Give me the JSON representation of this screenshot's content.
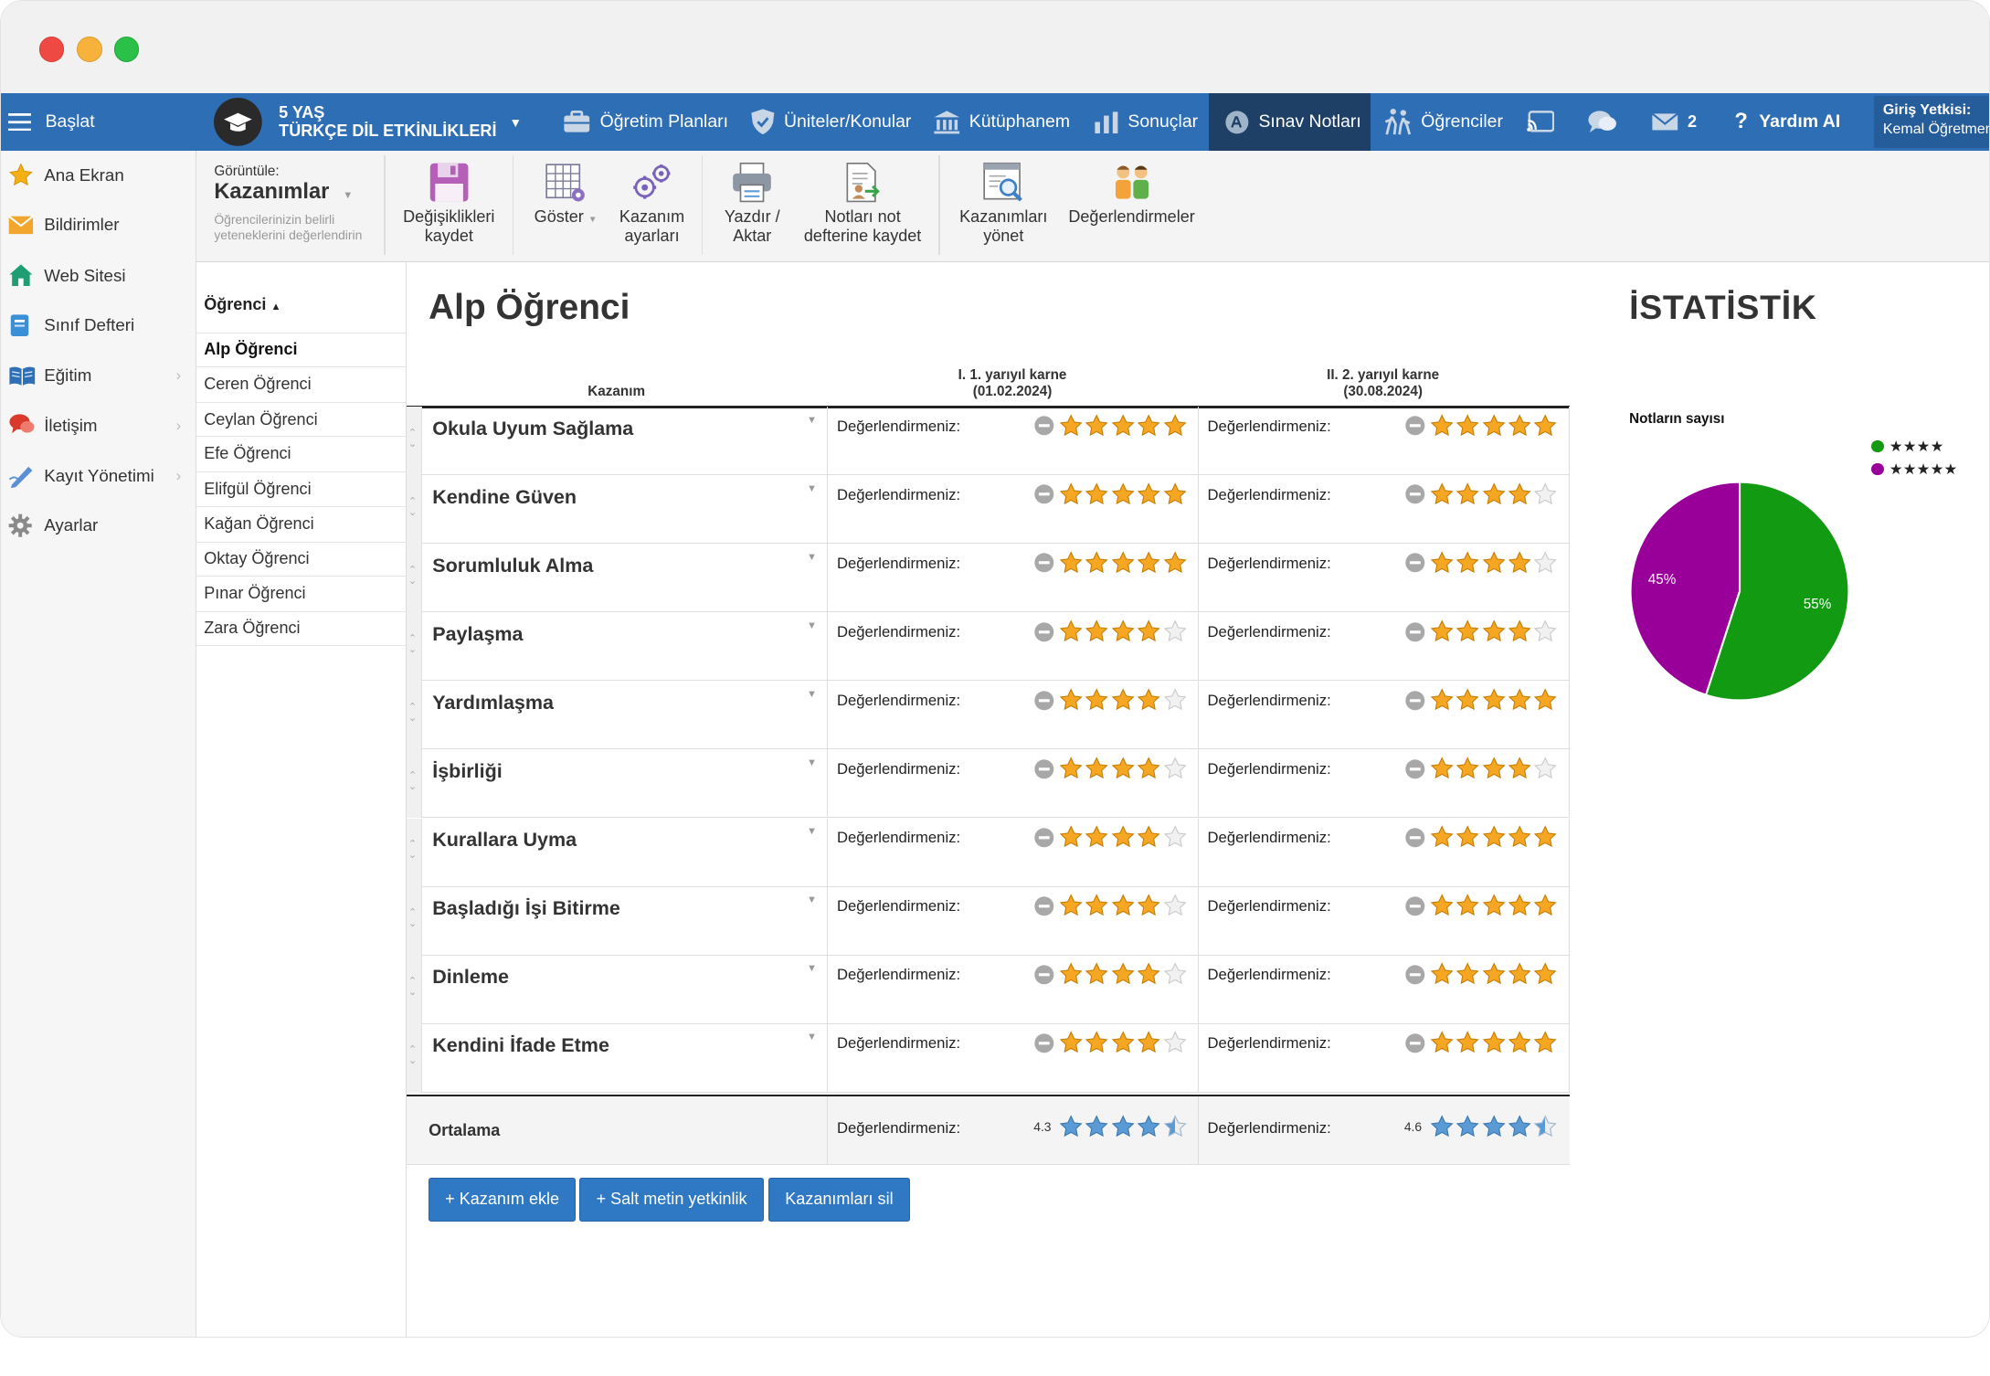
{
  "nav": {
    "start": "Başlat",
    "course_line1": "5 YAŞ",
    "course_line2": "TÜRKÇE DİL ETKİNLİKLERİ",
    "items": [
      "Öğretim Planları",
      "Üniteler/Konular",
      "Kütüphanem",
      "Sonuçlar",
      "Sınav Notları",
      "Öğrenciler"
    ],
    "mail_count": "2",
    "help": "Yardım AI",
    "auth_label": "Giriş Yetkisi:",
    "auth_user": "Kemal Öğretmen"
  },
  "sidebar": {
    "items": [
      {
        "label": "Ana Ekran",
        "icon": "star-icon"
      },
      {
        "label": "Bildirimler",
        "icon": "envelope-icon"
      },
      {
        "label": "Web Sitesi",
        "icon": "house-icon"
      },
      {
        "label": "Sınıf Defteri",
        "icon": "notebook-icon"
      },
      {
        "label": "Eğitim",
        "icon": "book-icon"
      },
      {
        "label": "İletişim",
        "icon": "chat-icon"
      },
      {
        "label": "Kayıt Yönetimi",
        "icon": "pen-icon"
      },
      {
        "label": "Ayarlar",
        "icon": "gear-icon"
      }
    ]
  },
  "toolbar": {
    "view_caption": "Görüntüle:",
    "view_value": "Kazanımlar",
    "view_desc1": "Öğrencilerinizin belirli",
    "view_desc2": "yeteneklerini değerlendirin",
    "save_l1": "Değişiklikleri",
    "save_l2": "kaydet",
    "show": "Göster",
    "settings_l1": "Kazanım",
    "settings_l2": "ayarları",
    "print_l1": "Yazdır /",
    "print_l2": "Aktar",
    "notes_l1": "Notları not",
    "notes_l2": "defterine kaydet",
    "manage_l1": "Kazanımları",
    "manage_l2": "yönet",
    "evaluations": "Değerlendirmeler"
  },
  "students": {
    "header": "Öğrenci",
    "list": [
      "Alp Öğrenci",
      "Ceren Öğrenci",
      "Ceylan Öğrenci",
      "Efe Öğrenci",
      "Elifgül Öğrenci",
      "Kağan Öğrenci",
      "Oktay Öğrenci",
      "Pınar Öğrenci",
      "Zara Öğrenci"
    ],
    "selected": "Alp Öğrenci"
  },
  "main": {
    "title": "Alp Öğrenci",
    "col_outcome": "Kazanım",
    "col1_title": "I. 1. yarıyıl karne",
    "col1_date": "(01.02.2024)",
    "col2_title": "II. 2. yarıyıl karne",
    "col2_date": "(30.08.2024)",
    "eval_label": "Değerlendirmeniz:",
    "rows": [
      {
        "name": "Okula Uyum Sağlama",
        "t1": 5,
        "t2": 5
      },
      {
        "name": "Kendine Güven",
        "t1": 5,
        "t2": 4
      },
      {
        "name": "Sorumluluk Alma",
        "t1": 5,
        "t2": 4
      },
      {
        "name": "Paylaşma",
        "t1": 4,
        "t2": 4
      },
      {
        "name": "Yardımlaşma",
        "t1": 4,
        "t2": 5
      },
      {
        "name": "İşbirliği",
        "t1": 4,
        "t2": 4
      },
      {
        "name": "Kurallara Uyma",
        "t1": 4,
        "t2": 5
      },
      {
        "name": "Başladığı İşi Bitirme",
        "t1": 4,
        "t2": 5
      },
      {
        "name": "Dinleme",
        "t1": 4,
        "t2": 5
      },
      {
        "name": "Kendini İfade Etme",
        "t1": 4,
        "t2": 5
      }
    ],
    "avg_label": "Ortalama",
    "avg1": "4.3",
    "avg2": "4.6",
    "btn_add": "+ Kazanım ekle",
    "btn_text": "+ Salt metin yetkinlik",
    "btn_delete": "Kazanımları sil"
  },
  "stats": {
    "title": "İSTATİSTİK",
    "chart_data": {
      "type": "pie",
      "title": "Notların sayısı",
      "legend_position": "top-right",
      "series": [
        {
          "name": "★★★★",
          "value": 55,
          "label": "55%",
          "color": "#139a13"
        },
        {
          "name": "★★★★★",
          "value": 45,
          "label": "45%",
          "color": "#990099"
        }
      ]
    }
  },
  "colors": {
    "topbar": "#2d6eb5",
    "active_tab": "#1e3f66",
    "star": "#f5a623",
    "avg_star": "#5b9bd5",
    "button": "#2f78c4"
  }
}
